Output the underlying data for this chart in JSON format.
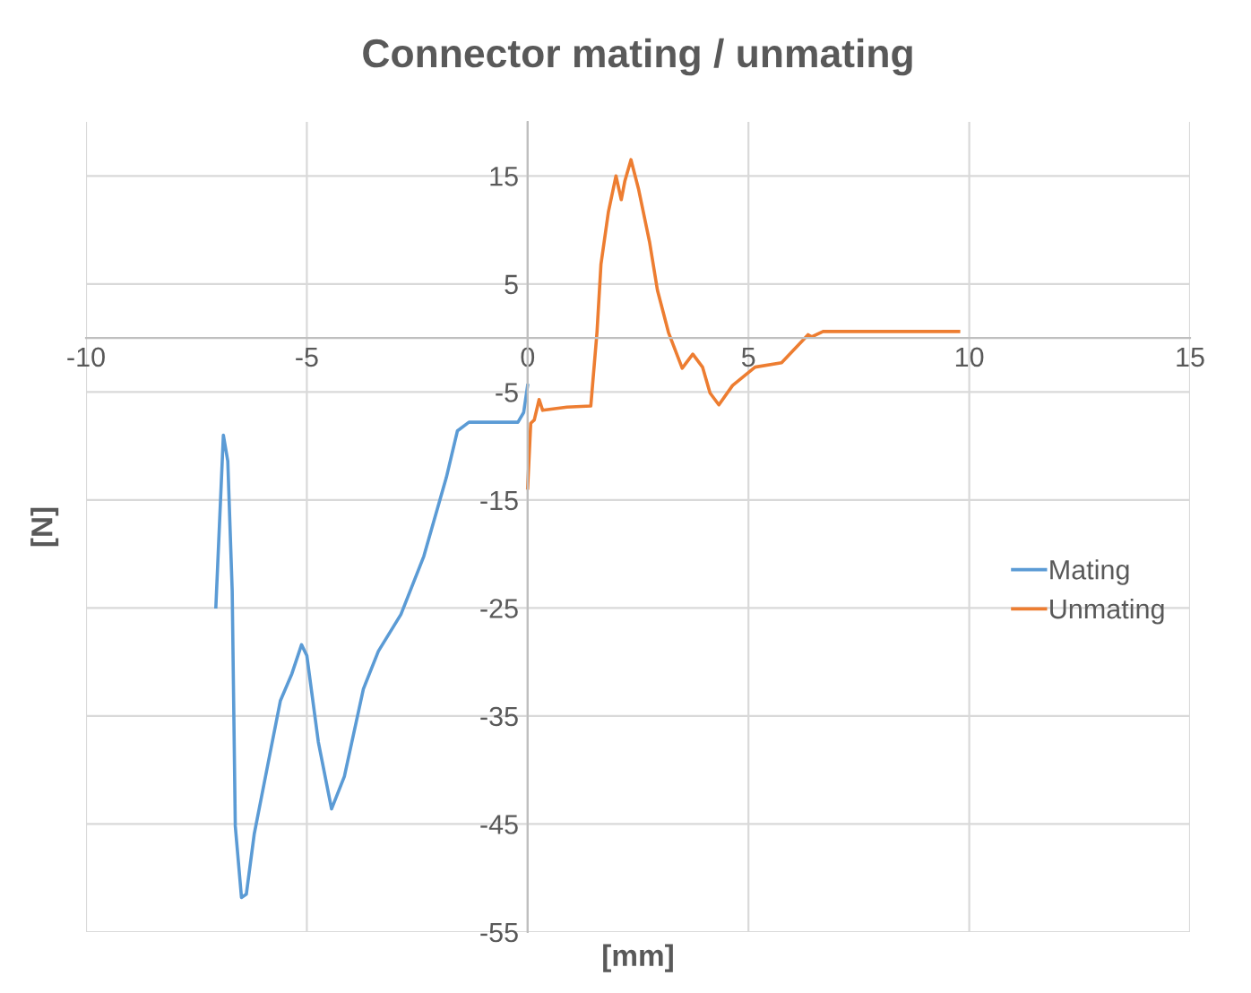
{
  "chart_data": {
    "type": "line",
    "title": "Connector mating / unmating",
    "xlabel": "[mm]",
    "ylabel": "[N]",
    "xlim": [
      -10,
      15
    ],
    "xticks": [
      -10,
      -5,
      0,
      5,
      10,
      15
    ],
    "ylim": [
      -55,
      20
    ],
    "yticks": [
      -55,
      -45,
      -35,
      -25,
      -15,
      -5,
      5,
      15
    ],
    "grid": true,
    "legend": "right",
    "marker": "none",
    "line_style": "solid",
    "series": [
      {
        "name": "Mating",
        "color": "#5b9bd5",
        "x": [
          -7.06,
          -6.89,
          -6.79,
          -6.69,
          -6.62,
          -6.48,
          -6.37,
          -6.19,
          -5.85,
          -5.6,
          -5.34,
          -5.12,
          -5.0,
          -4.74,
          -4.44,
          -4.15,
          -3.72,
          -3.38,
          -2.87,
          -2.35,
          -1.84,
          -1.59,
          -1.33,
          -0.48,
          -0.22,
          -0.09,
          0.0
        ],
        "values": [
          -24.9,
          -9.0,
          -11.4,
          -23.4,
          -45.2,
          -51.8,
          -51.5,
          -45.9,
          -38.8,
          -33.6,
          -31.1,
          -28.4,
          -29.4,
          -37.4,
          -43.6,
          -40.6,
          -32.5,
          -29.0,
          -25.6,
          -20.2,
          -12.9,
          -8.6,
          -7.8,
          -7.8,
          -7.8,
          -6.9,
          -4.4
        ]
      },
      {
        "name": "Unmating",
        "color": "#ed7d31",
        "x": [
          0.0,
          0.07,
          0.15,
          0.26,
          0.34,
          0.89,
          1.43,
          1.57,
          1.66,
          1.83,
          2.0,
          2.12,
          2.2,
          2.34,
          2.51,
          2.76,
          2.94,
          3.19,
          3.5,
          3.74,
          3.96,
          4.13,
          4.33,
          4.64,
          5.15,
          5.75,
          6.35,
          6.43,
          6.69,
          8.05,
          9.76
        ],
        "values": [
          -13.9,
          -7.9,
          -7.6,
          -5.7,
          -6.7,
          -6.4,
          -6.3,
          0.5,
          6.8,
          11.7,
          15.0,
          12.8,
          14.5,
          16.5,
          13.8,
          8.9,
          4.4,
          0.5,
          -2.8,
          -1.5,
          -2.7,
          -5.1,
          -6.2,
          -4.4,
          -2.7,
          -2.3,
          0.3,
          0.1,
          0.6,
          0.6,
          0.6
        ]
      }
    ]
  }
}
